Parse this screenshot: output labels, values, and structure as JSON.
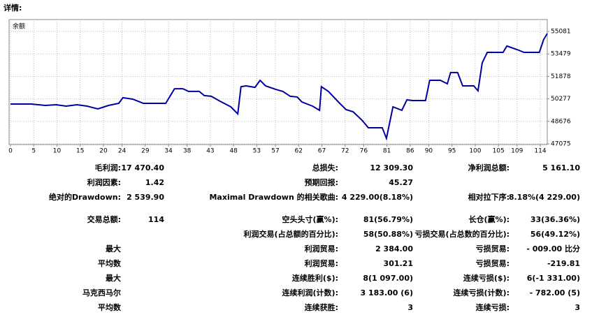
{
  "header": {
    "title": "详情:"
  },
  "chart_data": {
    "type": "line",
    "label": "余额",
    "color": "#0000a0",
    "grid": true,
    "x": [
      0,
      4.5,
      7.5,
      9.8,
      12,
      14.3,
      16.5,
      18.8,
      21.1,
      23.3,
      24.2,
      26.3,
      28.6,
      33.4,
      35.3,
      37.1,
      38.3,
      40.6,
      41.7,
      43.2,
      45.1,
      47.4,
      48.9,
      49.6,
      50.7,
      52.6,
      53.7,
      54.9,
      57.1,
      58.6,
      60.2,
      61.7,
      62.7,
      65,
      66.5,
      66.9,
      68.4,
      70.7,
      72.2,
      73.7,
      75.6,
      77,
      80,
      80.9,
      82.3,
      84.2,
      85.3,
      86.5,
      89.3,
      90.2,
      92.5,
      94,
      94.7,
      96.2,
      97.3,
      99.7,
      100.6,
      101.5,
      102.6,
      106,
      106.8,
      109,
      110.5,
      113.8,
      114.7,
      115.5
    ],
    "values": [
      49910,
      49910,
      49810,
      49860,
      49760,
      49860,
      49760,
      49560,
      49810,
      49960,
      50360,
      50260,
      49960,
      49960,
      51000,
      51000,
      50810,
      50810,
      50510,
      50460,
      50110,
      49710,
      49210,
      51150,
      51200,
      51100,
      51600,
      51200,
      50950,
      50810,
      50460,
      50410,
      50060,
      49760,
      49460,
      51150,
      50810,
      50010,
      49510,
      49360,
      48770,
      48220,
      48220,
      47470,
      49710,
      49460,
      50210,
      50160,
      50160,
      51600,
      51600,
      51350,
      52150,
      52150,
      51200,
      51200,
      50850,
      52840,
      53590,
      53590,
      54040,
      53790,
      53590,
      53590,
      54490,
      54930
    ],
    "xlim": [
      -0.3,
      115.5
    ],
    "xticks": [
      0,
      5,
      10,
      15,
      20,
      24,
      29,
      34,
      38,
      43,
      48,
      53,
      57,
      62,
      67,
      72,
      76,
      81,
      86,
      90,
      95,
      100,
      105,
      109,
      114
    ],
    "ylim": [
      47025,
      55927
    ],
    "yticks": [
      47075,
      48676,
      50277,
      51878,
      53479,
      55081
    ]
  },
  "stats": {
    "rows": [
      [
        {
          "label": "毛利润:",
          "value": "17 470.40"
        },
        {
          "label": "总损失:",
          "value": "12 309.30"
        },
        {
          "label": "净利润总额:",
          "value": "5 161.10"
        }
      ],
      [
        {
          "label": "利润因素:",
          "value": "1.42"
        },
        {
          "label": "预期回报:",
          "value": "45.27"
        },
        null
      ],
      [
        {
          "label": "绝对的Drawdown:",
          "value": "2 539.90"
        },
        {
          "label": "Maximal Drawdown 的相关歌曲:",
          "value": "4 229.00(8.18%)"
        },
        {
          "label": "相对拉下序:",
          "value": "8.18%(4 229.00)"
        }
      ],
      [
        {
          "label": "交易总额:",
          "value": "114"
        },
        {
          "label": "空头头寸(赢%):",
          "value": "81(56.79%)"
        },
        {
          "label": "长仓(赢%):",
          "value": "33(36.36%)"
        }
      ],
      [
        null,
        {
          "label": "利润交易(占总额的百分比):",
          "value": "58(50.88%)"
        },
        {
          "label": "亏损交易(占总数的百分比):",
          "value": "56(49.12%)"
        }
      ],
      [
        {
          "label": "最大"
        },
        {
          "label": "利润贸易:",
          "value": "2 384.00"
        },
        {
          "label": "亏损贸易:",
          "value": "- 009.00 比分"
        }
      ],
      [
        {
          "label": "平均数"
        },
        {
          "label": "利润贸易:",
          "value": "301.21"
        },
        {
          "label": "亏损贸易:",
          "value": "-219.81"
        }
      ],
      [
        {
          "label": "最大"
        },
        {
          "label": "连续胜利($):",
          "value": "8(1 097.00)"
        },
        {
          "label": "连续亏损($):",
          "value": "6(-1 331.00)"
        }
      ],
      [
        {
          "label": "马克西马尔"
        },
        {
          "label": "连续利润(计数):",
          "value": "3 183.00 (6)"
        },
        {
          "label": "连续亏损(计数):",
          "value": "- 782.00 (5)"
        }
      ],
      [
        {
          "label": "平均数"
        },
        {
          "label": "连续获胜:",
          "value": "3"
        },
        {
          "label": "连续亏损:",
          "value": "3"
        }
      ]
    ]
  }
}
